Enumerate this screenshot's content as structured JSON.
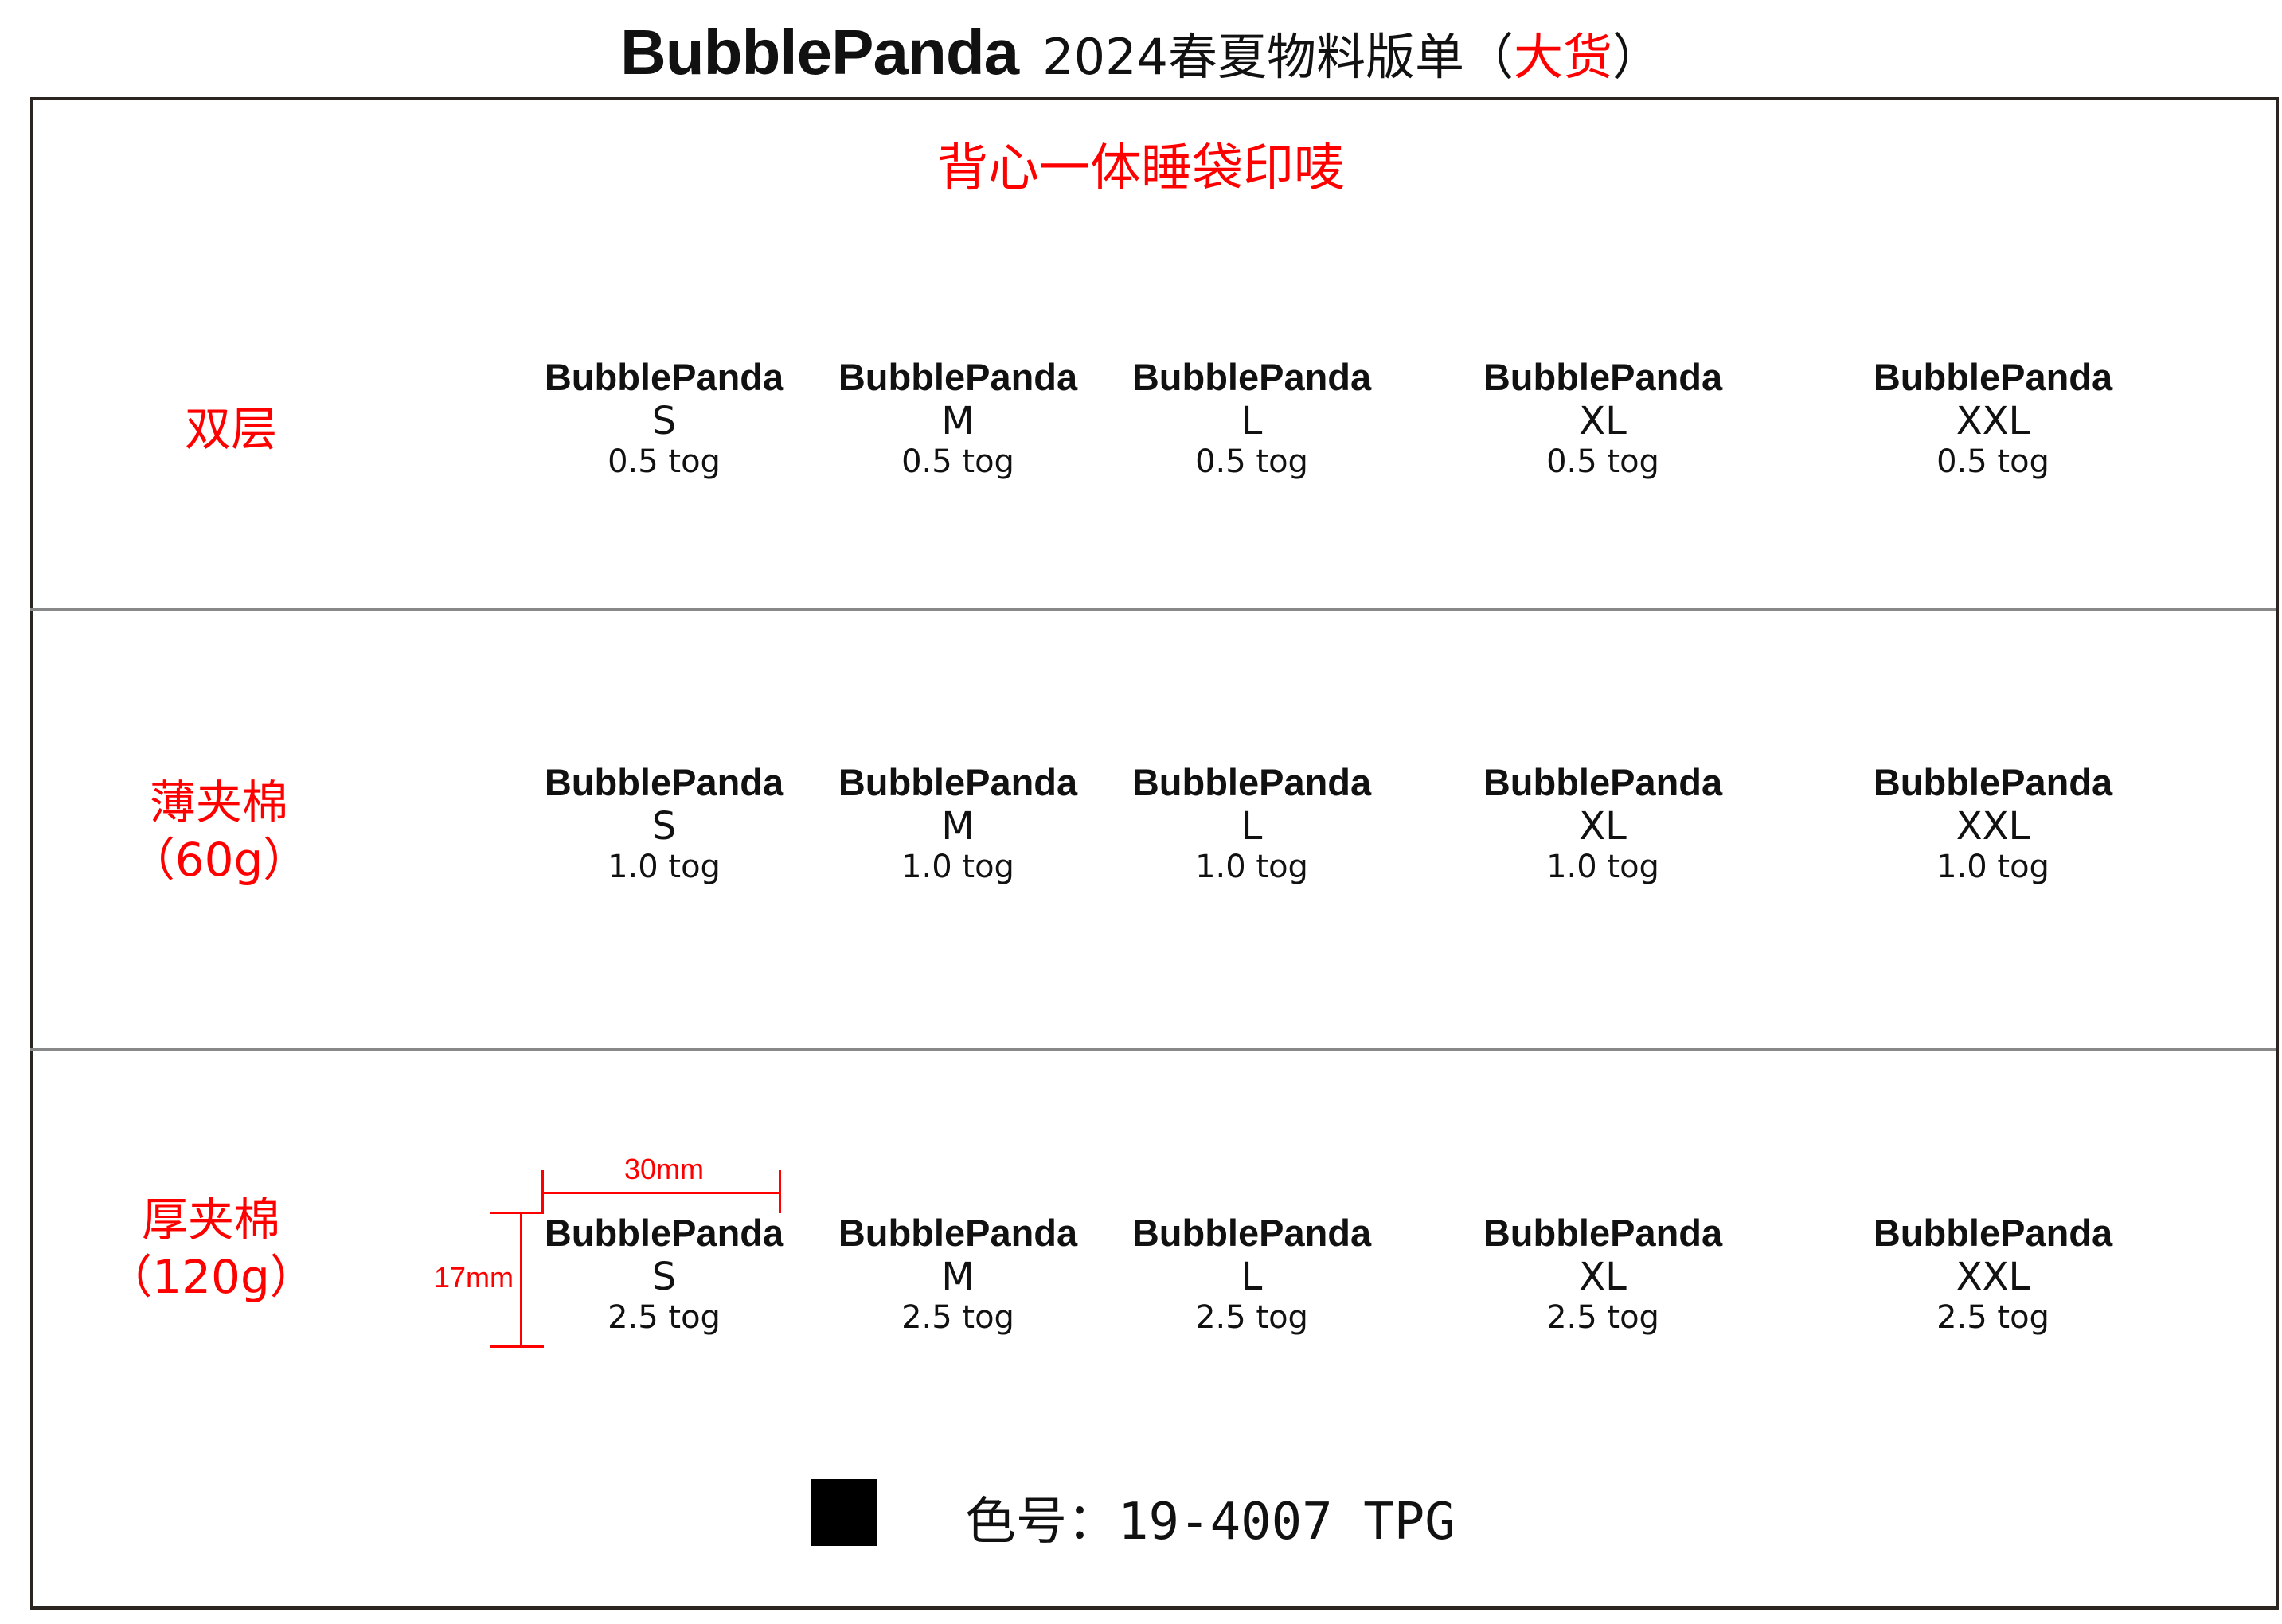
{
  "header": {
    "brand": "BubblePanda",
    "title_prefix": "2024春夏物料版单（",
    "title_highlight": "大货",
    "title_suffix": "）"
  },
  "subtitle": "背心一体睡袋印唛",
  "colors": {
    "accent": "#ff0000",
    "text": "#111111",
    "swatch": "#000000"
  },
  "rows": [
    {
      "label_line1": "双层",
      "label_line2": "",
      "items": [
        {
          "brand": "BubblePanda",
          "size": "S",
          "tog": "0.5 tog"
        },
        {
          "brand": "BubblePanda",
          "size": "M",
          "tog": "0.5 tog"
        },
        {
          "brand": "BubblePanda",
          "size": "L",
          "tog": "0.5 tog"
        },
        {
          "brand": "BubblePanda",
          "size": "XL",
          "tog": "0.5 tog"
        },
        {
          "brand": "BubblePanda",
          "size": "XXL",
          "tog": "0.5 tog"
        }
      ]
    },
    {
      "label_line1": "薄夹棉",
      "label_line2": "（60g）",
      "items": [
        {
          "brand": "BubblePanda",
          "size": "S",
          "tog": "1.0 tog"
        },
        {
          "brand": "BubblePanda",
          "size": "M",
          "tog": "1.0 tog"
        },
        {
          "brand": "BubblePanda",
          "size": "L",
          "tog": "1.0 tog"
        },
        {
          "brand": "BubblePanda",
          "size": "XL",
          "tog": "1.0 tog"
        },
        {
          "brand": "BubblePanda",
          "size": "XXL",
          "tog": "1.0 tog"
        }
      ]
    },
    {
      "label_line1": "厚夹棉",
      "label_line2": "（120g）",
      "items": [
        {
          "brand": "BubblePanda",
          "size": "S",
          "tog": "2.5 tog"
        },
        {
          "brand": "BubblePanda",
          "size": "M",
          "tog": "2.5 tog"
        },
        {
          "brand": "BubblePanda",
          "size": "L",
          "tog": "2.5 tog"
        },
        {
          "brand": "BubblePanda",
          "size": "XL",
          "tog": "2.5 tog"
        },
        {
          "brand": "BubblePanda",
          "size": "XXL",
          "tog": "2.5 tog"
        }
      ]
    }
  ],
  "dimensions": {
    "width": "30mm",
    "height": "17mm"
  },
  "color_code": "色号：19-4007 TPG"
}
